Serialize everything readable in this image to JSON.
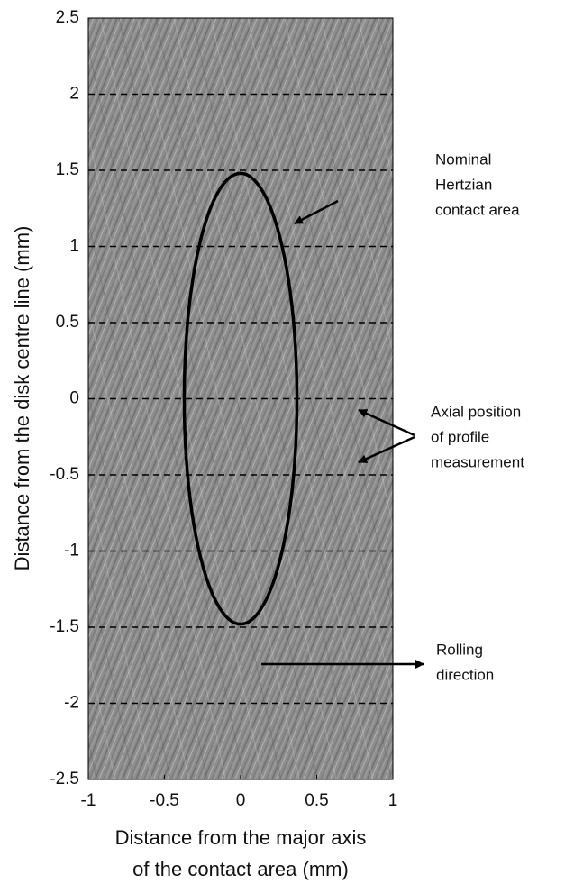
{
  "chart_data": {
    "type": "image",
    "x_label": [
      "Distance from the major axis",
      "of the contact area (mm)"
    ],
    "y_label": "Distance from the disk centre line (mm)",
    "xlim": [
      -1,
      1
    ],
    "ylim": [
      -2.5,
      2.5
    ],
    "xticks": [
      -1,
      -0.5,
      0,
      0.5,
      1
    ],
    "yticks": [
      -2.5,
      -2,
      -1.5,
      -1,
      -0.5,
      0,
      0.5,
      1,
      1.5,
      2,
      2.5
    ],
    "grid": true,
    "grid_style": "dashed",
    "ellipse": {
      "cx": 0,
      "cy": 0,
      "rx": 0.37,
      "ry": 1.48
    },
    "annotations": [
      {
        "lines": [
          "Nominal",
          "Hertzian",
          "contact area"
        ]
      },
      {
        "lines": [
          "Axial position",
          "of profile",
          "measurement"
        ]
      },
      {
        "lines": [
          "Rolling",
          "direction"
        ]
      }
    ]
  }
}
